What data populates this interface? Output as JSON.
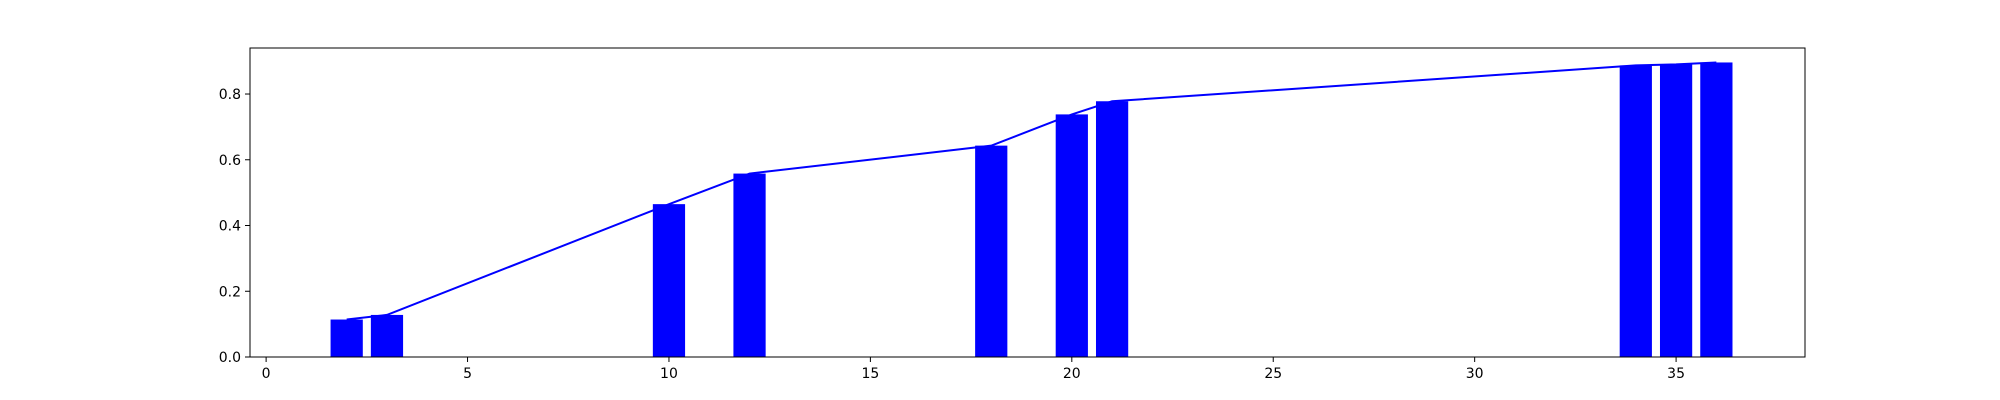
{
  "chart_data": {
    "type": "bar",
    "title": "",
    "xlabel": "",
    "ylabel": "",
    "xlim": [
      -0.4,
      38.2
    ],
    "ylim": [
      0,
      0.94
    ],
    "grid": false,
    "legend": "none",
    "bar_width": 0.8,
    "color": "#0000ff",
    "xticks": [
      0,
      5,
      10,
      15,
      20,
      25,
      30,
      35
    ],
    "yticks": [
      0.0,
      0.2,
      0.4,
      0.6,
      0.8
    ],
    "x": [
      2,
      3,
      10,
      12,
      18,
      20,
      21,
      34,
      35,
      36
    ],
    "values": [
      0.114,
      0.128,
      0.465,
      0.558,
      0.643,
      0.738,
      0.778,
      0.887,
      0.89,
      0.896
    ],
    "line": {
      "color": "#0000ff",
      "x": [
        2,
        3,
        10,
        12,
        18,
        20,
        21,
        34,
        35,
        36
      ],
      "y": [
        0.114,
        0.128,
        0.465,
        0.558,
        0.643,
        0.738,
        0.778,
        0.887,
        0.89,
        0.896
      ]
    }
  }
}
